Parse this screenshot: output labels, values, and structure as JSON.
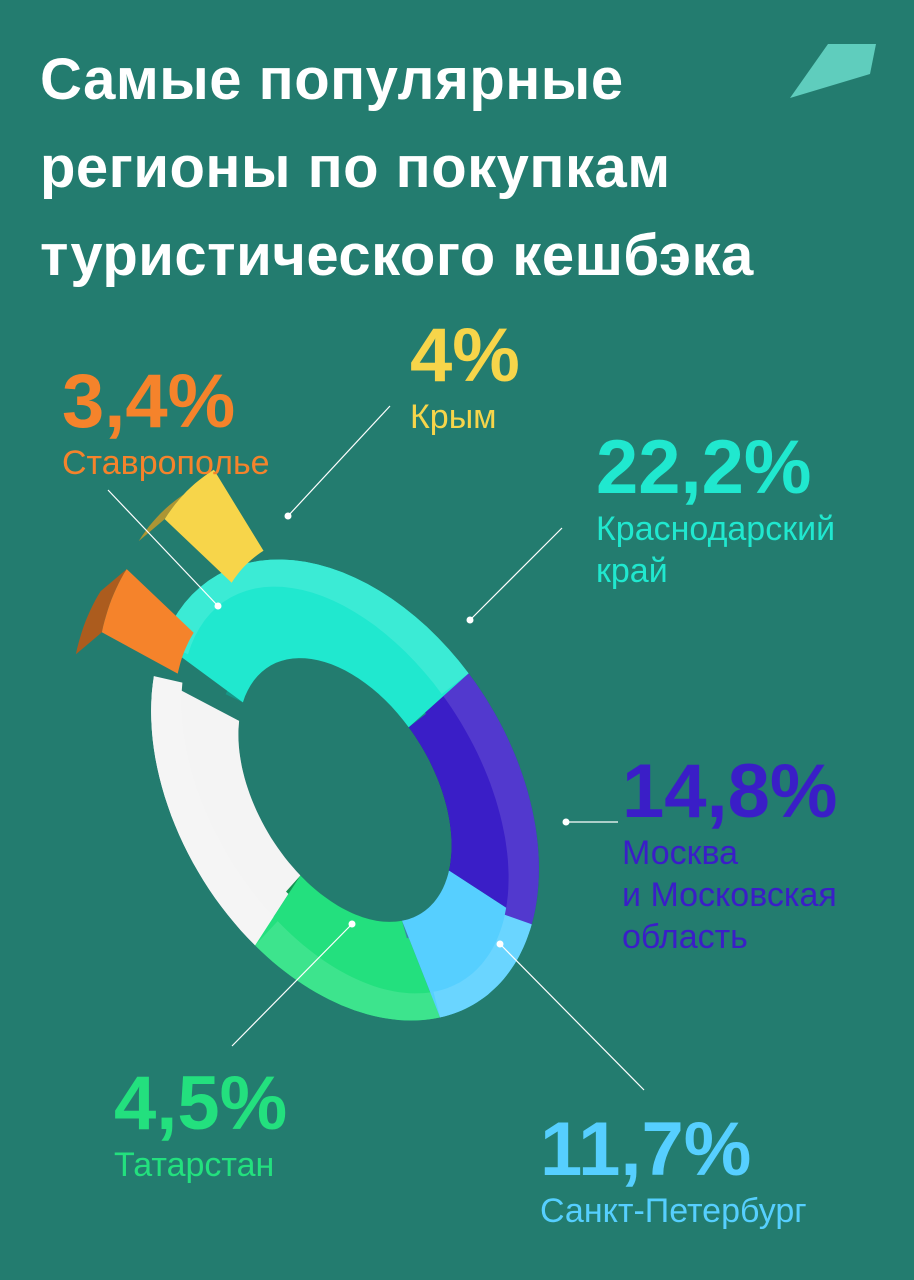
{
  "title_lines": [
    "Самые популярные",
    "регионы по покупкам",
    "туристического кешбэка"
  ],
  "colors": {
    "background": "#237c6f",
    "krasnodar": "#20e8cf",
    "moscow": "#3a1ec7",
    "spb": "#56cfff",
    "tatarstan": "#23e07e",
    "stavropol": "#f5832b",
    "crimea": "#f7d54a",
    "other": "#f4f4f4"
  },
  "chart_data": {
    "type": "pie",
    "style": "3d-donut",
    "unit": "%",
    "slices": [
      {
        "key": "krasnodar",
        "value": 22.2,
        "value_label": "22,2%",
        "label_lines": [
          "Краснодарский",
          "край"
        ]
      },
      {
        "key": "moscow",
        "value": 14.8,
        "value_label": "14,8%",
        "label_lines": [
          "Москва",
          "и Московская",
          "область"
        ]
      },
      {
        "key": "spb",
        "value": 11.7,
        "value_label": "11,7%",
        "label_lines": [
          "Санкт-Петербург"
        ]
      },
      {
        "key": "tatarstan",
        "value": 4.5,
        "value_label": "4,5%",
        "label_lines": [
          "Татарстан"
        ]
      },
      {
        "key": "other",
        "value": null,
        "value_label": "",
        "label_lines": []
      },
      {
        "key": "stavropol",
        "value": 3.4,
        "value_label": "3,4%",
        "label_lines": [
          "Ставрополье"
        ]
      },
      {
        "key": "crimea",
        "value": 4.0,
        "value_label": "4%",
        "label_lines": [
          "Крым"
        ]
      }
    ]
  }
}
